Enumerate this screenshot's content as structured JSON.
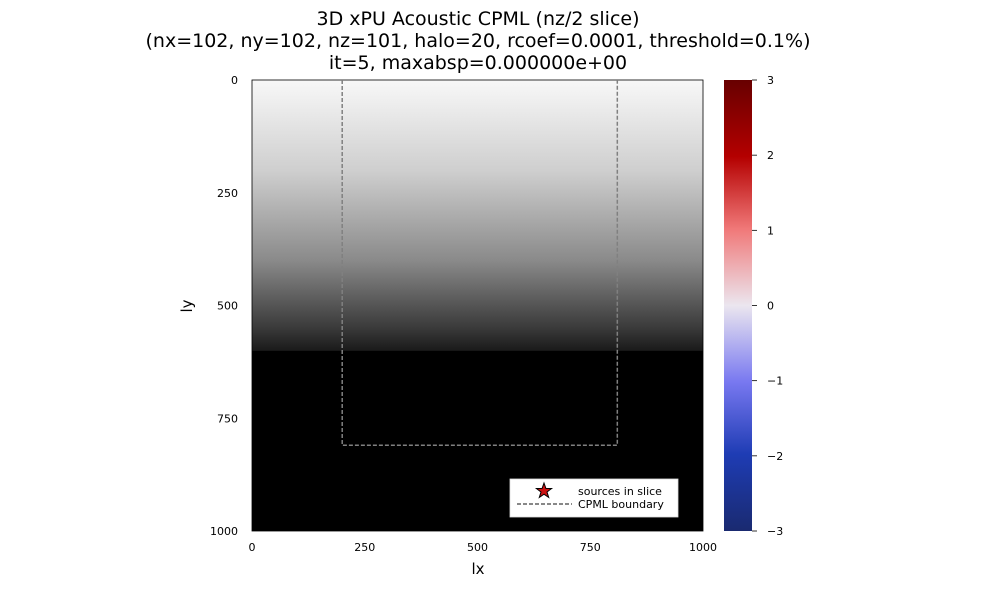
{
  "chart_data": {
    "type": "heatmap",
    "title_lines": [
      "3D xPU Acoustic CPML (nz/2 slice)",
      "(nx=102, ny=102, nz=101, halo=20, rcoef=0.0001, threshold=0.1%)",
      "it=5, maxabsp=0.000000e+00"
    ],
    "xlabel": "lx",
    "ylabel": "ly",
    "xlim": [
      0,
      1000
    ],
    "ylim": [
      0,
      1000
    ],
    "y_inverted": true,
    "x_ticks": [
      "0",
      "250",
      "500",
      "750",
      "1000"
    ],
    "y_ticks": [
      "0",
      "250",
      "500",
      "750",
      "1000"
    ],
    "background_gradient": {
      "description": "grayscale, light at ly=0 darkening to black by ly≈600",
      "top_color": "#f8f8f8",
      "black_from_ly": 600
    },
    "cpml_boundary": {
      "x_left": 200,
      "x_right": 810,
      "y_top": 0,
      "y_bottom": 810,
      "color": "#808080",
      "style": "dashed"
    },
    "colorbar": {
      "range": [
        -3,
        3
      ],
      "ticks": [
        "3",
        "2",
        "1",
        "0",
        "−1",
        "−2",
        "−3"
      ],
      "colors": [
        "#670000",
        "#b40000",
        "#f07878",
        "#ebe6ef",
        "#7878f0",
        "#1e3cb4",
        "#1a2a70"
      ]
    },
    "legend": {
      "position": "bottom-right",
      "entries": [
        {
          "label": "sources in slice",
          "marker": "star",
          "color": "#cc1111"
        },
        {
          "label": "CPML boundary",
          "marker": "dashed-line",
          "color": "#606060"
        }
      ]
    },
    "grid": false
  }
}
